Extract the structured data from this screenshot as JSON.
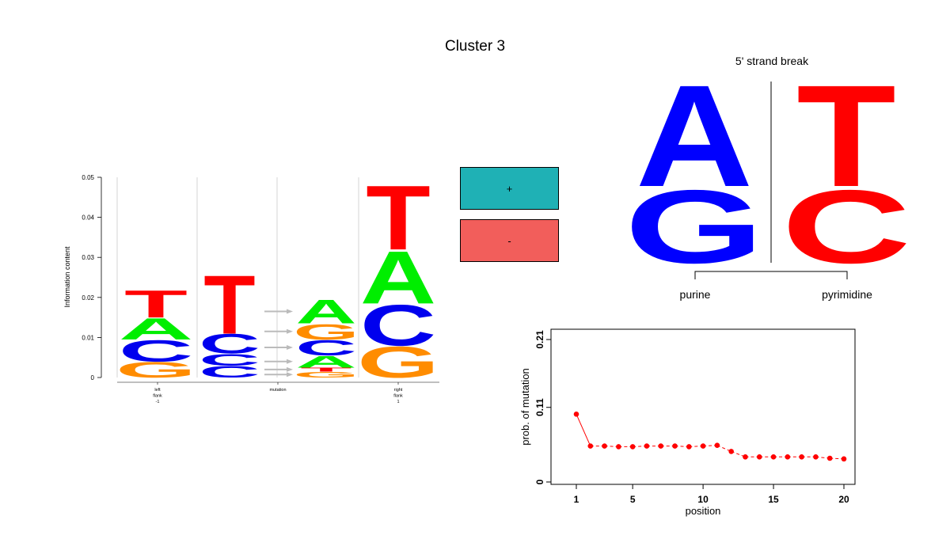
{
  "title": "Cluster 3",
  "colors": {
    "A": "#00ee00",
    "C": "#0000ee",
    "G": "#ff8c00",
    "T": "#ff0000",
    "plus": "#1fb1b5",
    "minus": "#f25e5b",
    "strand_A": "#0000ff",
    "strand_T": "#ff0000",
    "point": "#ff0000"
  },
  "legend": {
    "plus_label": "+",
    "minus_label": "-"
  },
  "strand": {
    "title": "5' strand break",
    "left_letters": [
      "G",
      "A"
    ],
    "right_letters": [
      "C",
      "T"
    ],
    "left_group": "purine",
    "right_group": "pyrimidine"
  },
  "chart_data": [
    {
      "type": "sequence-logo",
      "ylabel": "Information content",
      "ylim": [
        0,
        0.05
      ],
      "yticks": [
        0,
        0.01,
        0.02,
        0.03,
        0.04,
        0.05
      ],
      "xlabels": [
        {
          "text": [
            "left",
            "flank",
            "-1"
          ]
        },
        {
          "text": [
            "mutation"
          ]
        },
        {
          "text": [
            "right",
            "flank",
            "1"
          ]
        }
      ],
      "positions": [
        {
          "name": "left flank -1",
          "stack": [
            [
              "G",
              0.004
            ],
            [
              "C",
              0.0055
            ],
            [
              "A",
              0.0055
            ],
            [
              "T",
              0.007
            ]
          ]
        },
        {
          "name": "mutation reference",
          "stack": [
            [
              "C",
              0.003
            ],
            [
              "C",
              0.003
            ],
            [
              "C",
              0.005
            ],
            [
              "T",
              0.015
            ]
          ]
        },
        {
          "name": "right flank 1",
          "stack": [
            [
              "G",
              0.008
            ],
            [
              "C",
              0.0105
            ],
            [
              "A",
              0.0135
            ],
            [
              "T",
              0.0165
            ]
          ]
        }
      ],
      "mutations": [
        "G",
        "T",
        "A",
        "C",
        "G",
        "A"
      ],
      "mutation_values": [
        0.0015,
        0.001,
        0.003,
        0.004,
        0.004,
        0.006
      ]
    },
    {
      "type": "scatter",
      "xlabel": "position",
      "ylabel": "prob. of mutation",
      "xlim": [
        0,
        21
      ],
      "ylim": [
        0,
        0.21
      ],
      "xticks": [
        1,
        5,
        10,
        15,
        20
      ],
      "yticks": [
        0,
        0.11,
        0.21
      ],
      "x": [
        1,
        2,
        3,
        4,
        5,
        6,
        7,
        8,
        9,
        10,
        11,
        12,
        13,
        14,
        15,
        16,
        17,
        18,
        19,
        20
      ],
      "y": [
        0.1,
        0.053,
        0.053,
        0.052,
        0.052,
        0.053,
        0.053,
        0.053,
        0.052,
        0.053,
        0.054,
        0.045,
        0.037,
        0.037,
        0.037,
        0.037,
        0.037,
        0.037,
        0.035,
        0.034
      ]
    }
  ]
}
